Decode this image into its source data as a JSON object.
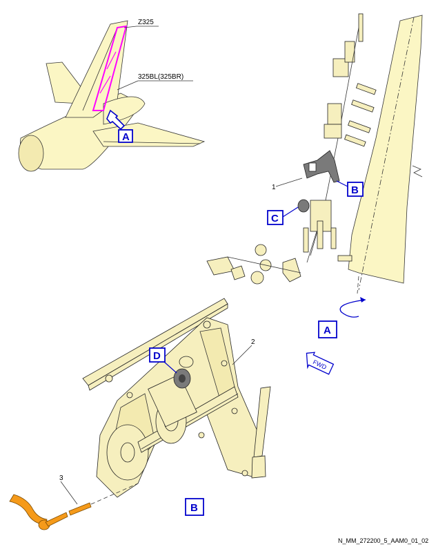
{
  "labels": {
    "zone": "Z325",
    "panel": "325BL(325BR)",
    "view_a_arrow": "A",
    "view_b_callout": "B",
    "view_c_callout": "C",
    "view_d_callout": "D",
    "view_a_title": "A",
    "view_b_title": "B",
    "fwd": "FWD",
    "item1": "1",
    "item2": "2",
    "item3": "3",
    "reference": "N_MM_272200_5_AAM0_01_02"
  },
  "colors": {
    "callout_blue": "#0000cc",
    "highlight_magenta": "#ff00ff",
    "skin_yellow": "#fbf6c4",
    "tool_orange": "#f59a1a"
  }
}
